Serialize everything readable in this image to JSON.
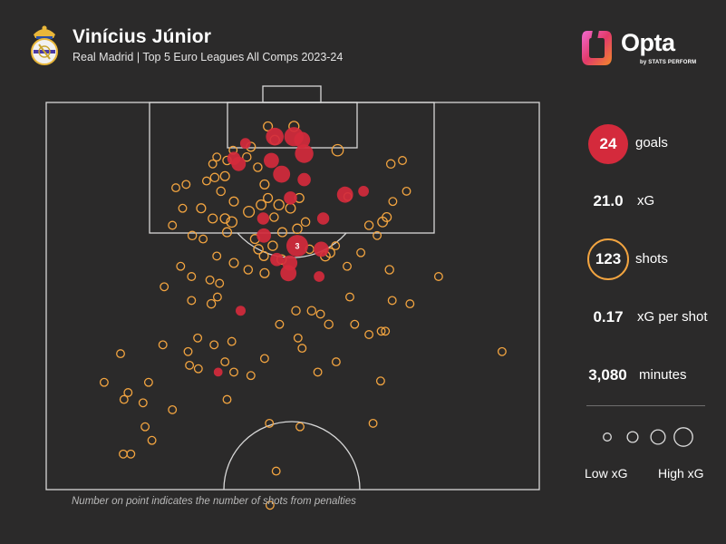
{
  "header": {
    "player_name": "Vinícius Júnior",
    "subtitle": "Real Madrid | Top 5 Euro Leagues All Comps 2023-24",
    "brand": "Opta",
    "brand_sub": "by STATS PERFORM"
  },
  "stats": {
    "goals": {
      "value": "24",
      "label": "goals"
    },
    "xg": {
      "value": "21.0",
      "label": "xG"
    },
    "shots": {
      "value": "123",
      "label": "shots"
    },
    "xg_per_shot": {
      "value": "0.17",
      "label": "xG per shot"
    },
    "minutes": {
      "value": "3,080",
      "label": "minutes"
    }
  },
  "legend": {
    "low": "Low xG",
    "high": "High xG"
  },
  "footnote": "Number on point indicates the number of shots from penalties",
  "colors": {
    "background": "#2b2a2a",
    "goal": "#d42a3c",
    "shot": "#f2a440",
    "pitch_line": "#d8d8d8"
  },
  "chart_data": {
    "type": "scatter",
    "description_units": "pitch metres: x = distance from goal line, y = lateral offset from centre (negative = left)",
    "penalty_marker_label": "3",
    "goals": [
      {
        "x": 5.0,
        "y": -2.5,
        "xg": 0.45
      },
      {
        "x": 5.0,
        "y": 0.3,
        "xg": 0.55
      },
      {
        "x": 5.5,
        "y": 1.5,
        "xg": 0.35
      },
      {
        "x": 7.5,
        "y": 1.8,
        "xg": 0.5
      },
      {
        "x": 8.2,
        "y": -8.5,
        "xg": 0.2
      },
      {
        "x": 9.0,
        "y": -7.8,
        "xg": 0.25
      },
      {
        "x": 10.5,
        "y": -1.5,
        "xg": 0.4
      },
      {
        "x": 11.3,
        "y": 1.8,
        "xg": 0.2
      },
      {
        "x": 13.5,
        "y": 7.8,
        "xg": 0.35
      },
      {
        "x": 13.0,
        "y": 10.5,
        "xg": 0.1
      },
      {
        "x": 14.0,
        "y": -0.2,
        "xg": 0.2
      },
      {
        "x": 17.0,
        "y": 4.6,
        "xg": 0.15
      },
      {
        "x": 19.5,
        "y": -4.1,
        "xg": 0.25
      },
      {
        "x": 21.0,
        "y": 0.8,
        "xg": 0.76,
        "penalties": 3
      },
      {
        "x": 21.5,
        "y": 4.3,
        "xg": 0.3
      },
      {
        "x": 23.0,
        "y": -2.2,
        "xg": 0.2
      },
      {
        "x": 23.5,
        "y": -0.3,
        "xg": 0.3
      },
      {
        "x": 25.0,
        "y": -0.5,
        "xg": 0.35
      },
      {
        "x": 25.5,
        "y": 4.0,
        "xg": 0.1
      },
      {
        "x": 17.0,
        "y": -4.2,
        "xg": 0.15
      },
      {
        "x": 8.5,
        "y": -3.0,
        "xg": 0.3
      },
      {
        "x": 6.0,
        "y": -6.8,
        "xg": 0.1
      },
      {
        "x": 30.5,
        "y": -7.5,
        "xg": 0.08
      },
      {
        "x": 39.5,
        "y": -10.8,
        "xg": 0.05
      }
    ],
    "shots": [
      {
        "x": 3.5,
        "y": -3.5,
        "xg": 0.05
      },
      {
        "x": 3.5,
        "y": 0.3,
        "xg": 0.08
      },
      {
        "x": 5.5,
        "y": -2.5,
        "xg": 0.06
      },
      {
        "x": 7.0,
        "y": 6.7,
        "xg": 0.12
      },
      {
        "x": 6.5,
        "y": -6.0,
        "xg": 0.05
      },
      {
        "x": 7.0,
        "y": -8.6,
        "xg": 0.03
      },
      {
        "x": 8.5,
        "y": -9.5,
        "xg": 0.04
      },
      {
        "x": 9.0,
        "y": -11.6,
        "xg": 0.03
      },
      {
        "x": 8.0,
        "y": -6.6,
        "xg": 0.04
      },
      {
        "x": 9.0,
        "y": 14.5,
        "xg": 0.04
      },
      {
        "x": 8.5,
        "y": 16.2,
        "xg": 0.03
      },
      {
        "x": 12.0,
        "y": -4.0,
        "xg": 0.05
      },
      {
        "x": 11.0,
        "y": -11.3,
        "xg": 0.04
      },
      {
        "x": 10.8,
        "y": -9.8,
        "xg": 0.05
      },
      {
        "x": 12.0,
        "y": -15.5,
        "xg": 0.03
      },
      {
        "x": 13.0,
        "y": -10.4,
        "xg": 0.04
      },
      {
        "x": 14.0,
        "y": -3.5,
        "xg": 0.05
      },
      {
        "x": 13.8,
        "y": 8.2,
        "xg": 0.03
      },
      {
        "x": 14.5,
        "y": -8.5,
        "xg": 0.05
      },
      {
        "x": 15.5,
        "y": -13.3,
        "xg": 0.05
      },
      {
        "x": 15.0,
        "y": -4.5,
        "xg": 0.07
      },
      {
        "x": 15.0,
        "y": -1.9,
        "xg": 0.08
      },
      {
        "x": 15.5,
        "y": -0.2,
        "xg": 0.07
      },
      {
        "x": 14.0,
        "y": 1.1,
        "xg": 0.05
      },
      {
        "x": 16.0,
        "y": -6.3,
        "xg": 0.1
      },
      {
        "x": 17.0,
        "y": -9.8,
        "xg": 0.06
      },
      {
        "x": 17.5,
        "y": -8.8,
        "xg": 0.09
      },
      {
        "x": 17.0,
        "y": -11.6,
        "xg": 0.05
      },
      {
        "x": 16.8,
        "y": -2.6,
        "xg": 0.04
      },
      {
        "x": 17.5,
        "y": 2.0,
        "xg": 0.04
      },
      {
        "x": 18.5,
        "y": 0.8,
        "xg": 0.06
      },
      {
        "x": 18.0,
        "y": 11.3,
        "xg": 0.04
      },
      {
        "x": 16.8,
        "y": 13.9,
        "xg": 0.05
      },
      {
        "x": 17.5,
        "y": 13.3,
        "xg": 0.07
      },
      {
        "x": 19.0,
        "y": -9.5,
        "xg": 0.05
      },
      {
        "x": 19.5,
        "y": -14.6,
        "xg": 0.04
      },
      {
        "x": 19.0,
        "y": -1.4,
        "xg": 0.05
      },
      {
        "x": 20.0,
        "y": -5.4,
        "xg": 0.05
      },
      {
        "x": 21.0,
        "y": -2.8,
        "xg": 0.06
      },
      {
        "x": 21.5,
        "y": -4.9,
        "xg": 0.06
      },
      {
        "x": 21.0,
        "y": 6.4,
        "xg": 0.03
      },
      {
        "x": 21.5,
        "y": 2.6,
        "xg": 0.04
      },
      {
        "x": 22.5,
        "y": 4.9,
        "xg": 0.07
      },
      {
        "x": 22.0,
        "y": 5.6,
        "xg": 0.06
      },
      {
        "x": 22.0,
        "y": 10.1,
        "xg": 0.03
      },
      {
        "x": 22.5,
        "y": -4.1,
        "xg": 0.05
      },
      {
        "x": 23.0,
        "y": -1.5,
        "xg": 0.06
      },
      {
        "x": 23.5,
        "y": -8.5,
        "xg": 0.05
      },
      {
        "x": 24.0,
        "y": -16.3,
        "xg": 0.03
      },
      {
        "x": 24.0,
        "y": 8.1,
        "xg": 0.03
      },
      {
        "x": 24.5,
        "y": -6.4,
        "xg": 0.04
      },
      {
        "x": 24.5,
        "y": 14.3,
        "xg": 0.04
      },
      {
        "x": 25.0,
        "y": -4.0,
        "xg": 0.05
      },
      {
        "x": 25.5,
        "y": -14.7,
        "xg": 0.03
      },
      {
        "x": 26.5,
        "y": -10.6,
        "xg": 0.03
      },
      {
        "x": 27.0,
        "y": -18.7,
        "xg": 0.03
      },
      {
        "x": 29.5,
        "y": -11.8,
        "xg": 0.04
      },
      {
        "x": 29.0,
        "y": -14.7,
        "xg": 0.03
      },
      {
        "x": 28.5,
        "y": -10.9,
        "xg": 0.03
      },
      {
        "x": 25.5,
        "y": 21.5,
        "xg": 0.03
      },
      {
        "x": 29.0,
        "y": 14.7,
        "xg": 0.03
      },
      {
        "x": 29.5,
        "y": 17.3,
        "xg": 0.03
      },
      {
        "x": 30.5,
        "y": 2.9,
        "xg": 0.04
      },
      {
        "x": 30.5,
        "y": 0.6,
        "xg": 0.04
      },
      {
        "x": 31.0,
        "y": 4.2,
        "xg": 0.03
      },
      {
        "x": 32.5,
        "y": 5.4,
        "xg": 0.04
      },
      {
        "x": 32.5,
        "y": -1.8,
        "xg": 0.03
      },
      {
        "x": 34.5,
        "y": 0.9,
        "xg": 0.03
      },
      {
        "x": 36.0,
        "y": 1.5,
        "xg": 0.03
      },
      {
        "x": 35.0,
        "y": -8.8,
        "xg": 0.03
      },
      {
        "x": 34.0,
        "y": 11.3,
        "xg": 0.03
      },
      {
        "x": 33.5,
        "y": 13.7,
        "xg": 0.03
      },
      {
        "x": 33.5,
        "y": 13.1,
        "xg": 0.03
      },
      {
        "x": 32.5,
        "y": 9.2,
        "xg": 0.03
      },
      {
        "x": 34.5,
        "y": -13.8,
        "xg": 0.03
      },
      {
        "x": 35.5,
        "y": -11.4,
        "xg": 0.03
      },
      {
        "x": 36.5,
        "y": -15.2,
        "xg": 0.03
      },
      {
        "x": 35.5,
        "y": -18.9,
        "xg": 0.03
      },
      {
        "x": 38.0,
        "y": -9.8,
        "xg": 0.03
      },
      {
        "x": 39.5,
        "y": -8.5,
        "xg": 0.03
      },
      {
        "x": 40.0,
        "y": -6.0,
        "xg": 0.03
      },
      {
        "x": 36.8,
        "y": -25.1,
        "xg": 0.03
      },
      {
        "x": 38.5,
        "y": -15.0,
        "xg": 0.03
      },
      {
        "x": 39.0,
        "y": -13.7,
        "xg": 0.03
      },
      {
        "x": 39.5,
        "y": 3.8,
        "xg": 0.03
      },
      {
        "x": 41.0,
        "y": -21.0,
        "xg": 0.03
      },
      {
        "x": 42.5,
        "y": -24.0,
        "xg": 0.03
      },
      {
        "x": 44.0,
        "y": -21.8,
        "xg": 0.03
      },
      {
        "x": 47.5,
        "y": -21.5,
        "xg": 0.03
      },
      {
        "x": 49.5,
        "y": -20.5,
        "xg": 0.03
      },
      {
        "x": 51.5,
        "y": -24.7,
        "xg": 0.03
      },
      {
        "x": 51.5,
        "y": -23.6,
        "xg": 0.03
      },
      {
        "x": 43.5,
        "y": -24.6,
        "xg": 0.03
      },
      {
        "x": 41.0,
        "y": -27.5,
        "xg": 0.03
      },
      {
        "x": 47.5,
        "y": 1.2,
        "xg": 0.03
      },
      {
        "x": 47.0,
        "y": -3.3,
        "xg": 0.03
      },
      {
        "x": 54.0,
        "y": -2.3,
        "xg": 0.03
      },
      {
        "x": 59.0,
        "y": -3.2,
        "xg": 0.03
      },
      {
        "x": 36.5,
        "y": 30.8,
        "xg": 0.03
      },
      {
        "x": 47.0,
        "y": 11.9,
        "xg": 0.03
      },
      {
        "x": 40.8,
        "y": 13.0,
        "xg": 0.03
      },
      {
        "x": 13.0,
        "y": 16.8,
        "xg": 0.03
      },
      {
        "x": 14.5,
        "y": 14.8,
        "xg": 0.03
      },
      {
        "x": 9.5,
        "y": -5.0,
        "xg": 0.04
      },
      {
        "x": 8.0,
        "y": -11.0,
        "xg": 0.03
      },
      {
        "x": 11.5,
        "y": -12.5,
        "xg": 0.03
      },
      {
        "x": 19.5,
        "y": 12.5,
        "xg": 0.03
      },
      {
        "x": 15.5,
        "y": -16.0,
        "xg": 0.03
      },
      {
        "x": 20.0,
        "y": -13.0,
        "xg": 0.03
      },
      {
        "x": 37.5,
        "y": -4.0,
        "xg": 0.03
      },
      {
        "x": 38.0,
        "y": 6.5,
        "xg": 0.03
      },
      {
        "x": 26.0,
        "y": -12.0,
        "xg": 0.03
      },
      {
        "x": 28.5,
        "y": 8.5,
        "xg": 0.03
      },
      {
        "x": 22.5,
        "y": -11.0,
        "xg": 0.03
      },
      {
        "x": 18.0,
        "y": -17.5,
        "xg": 0.03
      },
      {
        "x": 43.5,
        "y": -9.5,
        "xg": 0.03
      },
      {
        "x": 45.0,
        "y": -17.5,
        "xg": 0.03
      },
      {
        "x": 12.5,
        "y": -17.0,
        "xg": 0.03
      }
    ],
    "legend_xg_scale": [
      0.03,
      0.1,
      0.25,
      0.5
    ]
  }
}
